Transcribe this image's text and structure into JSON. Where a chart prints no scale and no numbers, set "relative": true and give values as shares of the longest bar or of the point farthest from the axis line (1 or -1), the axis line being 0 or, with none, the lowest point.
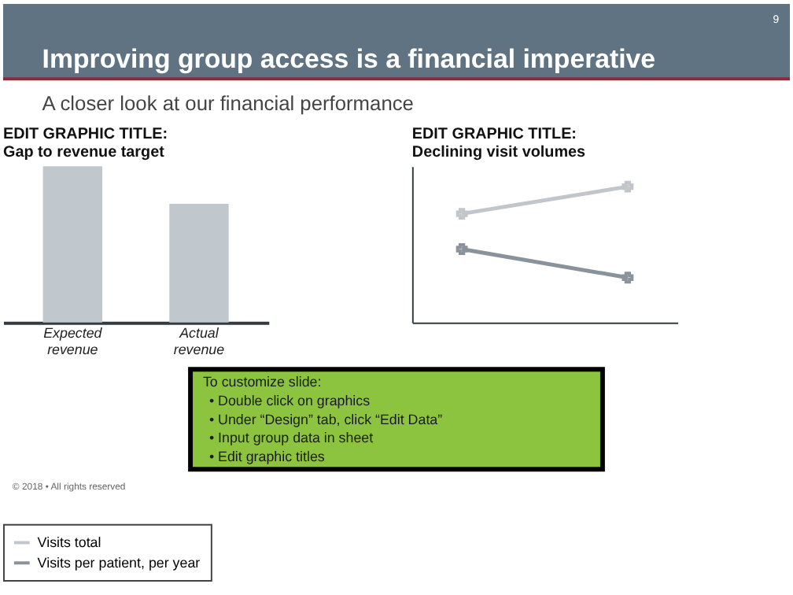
{
  "chart_data": [
    {
      "type": "other",
      "title": "Improving group access is a financial imperative",
      "subtitle": "A closer look at our financial performance",
      "annotations": [
        "9",
        "To customize slide:",
        "• Double click on graphics",
        "• Under “Design” tab, click “Edit Data”",
        "• Input group data in sheet",
        "• Edit graphic titles",
        "© 2018 • All rights reserved"
      ]
    },
    {
      "type": "bar",
      "title": "EDIT GRAPHIC TITLE:\nGap to revenue target",
      "categories": [
        "Expected revenue",
        "Actual revenue"
      ],
      "values": [
        1,
        0.76
      ],
      "color": "#c0c8ce",
      "relative": true
    },
    {
      "type": "line",
      "title": "EDIT GRAPHIC TITLE:\nDeclining visit volumes",
      "categories": [
        null,
        null
      ],
      "relative": true,
      "legend": "bottom",
      "marker": "cross",
      "line_style": "solid",
      "series": [
        {
          "name": "Visits total",
          "color": "#c2c6ca",
          "values": [
            0.8,
            1
          ]
        },
        {
          "name": "Visits per patient, per year",
          "color": "#8a939b",
          "values": [
            0.54,
            0.33
          ]
        }
      ]
    }
  ]
}
